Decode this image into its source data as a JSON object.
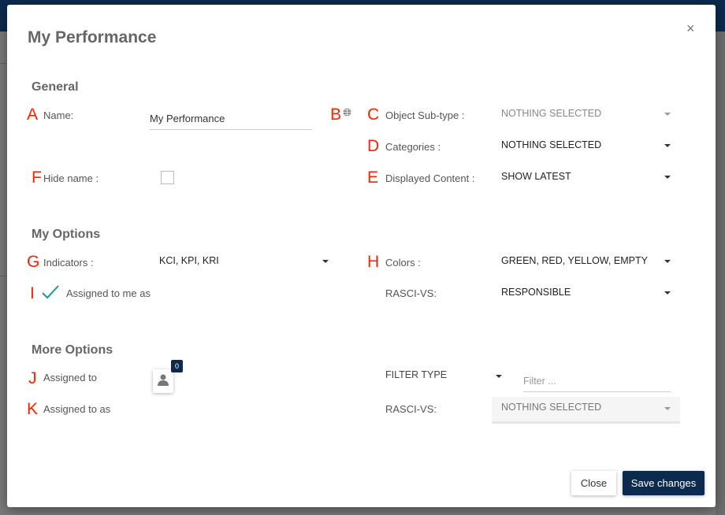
{
  "modal": {
    "title": "My Performance",
    "close_icon": "×"
  },
  "annotations": {
    "A": "A",
    "B": "B",
    "C": "C",
    "D": "D",
    "E": "E",
    "F": "F",
    "G": "G",
    "H": "H",
    "I": "I",
    "J": "J",
    "K": "K"
  },
  "general": {
    "heading": "General",
    "name_label": "Name:",
    "name_value": "My Performance",
    "hide_name_label": "Hide name :",
    "hide_name_checked": false,
    "object_subtype_label": "Object Sub-type :",
    "object_subtype_value": "NOTHING SELECTED",
    "categories_label": "Categories :",
    "categories_value": "NOTHING SELECTED",
    "displayed_content_label": "Displayed Content :",
    "displayed_content_value": "SHOW LATEST"
  },
  "my_options": {
    "heading": "My Options",
    "indicators_label": "Indicators :",
    "indicators_value": "KCI, KPI, KRI",
    "colors_label": "Colors :",
    "colors_value": "GREEN, RED, YELLOW, EMPTY",
    "assigned_label": "Assigned to me as",
    "assigned_checked": true,
    "rasci_label": "RASCI-VS:",
    "rasci_value": "RESPONSIBLE"
  },
  "more_options": {
    "heading": "More Options",
    "assigned_to_label": "Assigned to",
    "assigned_count": "0",
    "assigned_to_as_label": "Assigned to as",
    "filter_type_value": "FILTER TYPE",
    "filter_placeholder": "Filter ...",
    "rasci_label": "RASCI-VS:",
    "rasci_value": "NOTHING SELECTED"
  },
  "footer": {
    "close_label": "Close",
    "save_label": "Save changes"
  },
  "colors": {
    "primary": "#0b2a4e",
    "annotation": "#ff2200",
    "check": "#1a9a8a"
  }
}
